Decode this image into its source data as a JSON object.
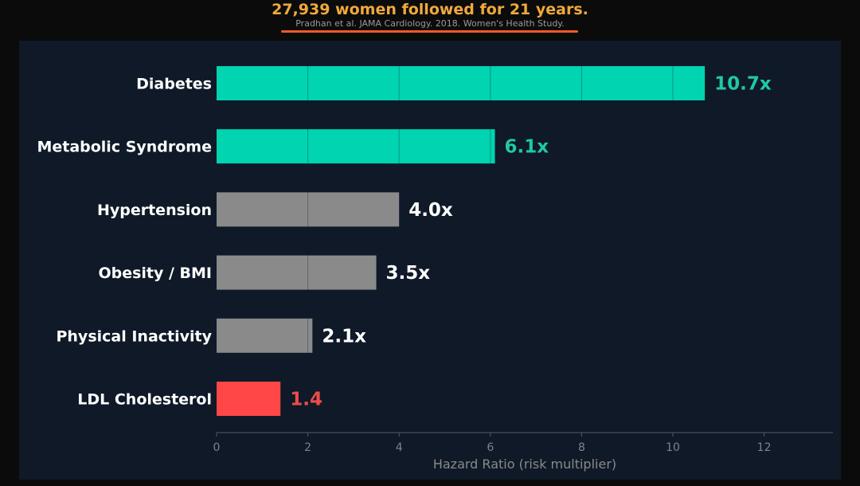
{
  "headline": "27,939 women followed for 21 years.",
  "source": "Pradhan et al. JAMA Cardiology. 2018. Women's Health Study.",
  "colors": {
    "highlight": "#00d4b0",
    "neutral": "#8a8a8a",
    "warning": "#ff4747",
    "headline": "#f0a93c",
    "underline": "#f05a28",
    "background": "#0f1928"
  },
  "chart_data": {
    "type": "bar",
    "orientation": "horizontal",
    "categories": [
      "Diabetes",
      "Metabolic Syndrome",
      "Hypertension",
      "Obesity / BMI",
      "Physical Inactivity",
      "LDL Cholesterol"
    ],
    "values": [
      10.7,
      6.1,
      4.0,
      3.5,
      2.1,
      1.4
    ],
    "data_labels": [
      "10.7x",
      "6.1x",
      "4.0x",
      "3.5x",
      "2.1x",
      "1.4"
    ],
    "bar_colors": [
      "#00d4b0",
      "#00d4b0",
      "#8a8a8a",
      "#8a8a8a",
      "#8a8a8a",
      "#ff4747"
    ],
    "label_colors": [
      "#1fc9a6",
      "#1fc9a6",
      "#ffffff",
      "#ffffff",
      "#ffffff",
      "#ef4b4b"
    ],
    "xlabel": "Hazard Ratio (risk multiplier)",
    "xticks": [
      "0",
      "2",
      "4",
      "6",
      "8",
      "10",
      "12"
    ],
    "xlim": [
      0,
      13.5
    ],
    "grid": true
  }
}
